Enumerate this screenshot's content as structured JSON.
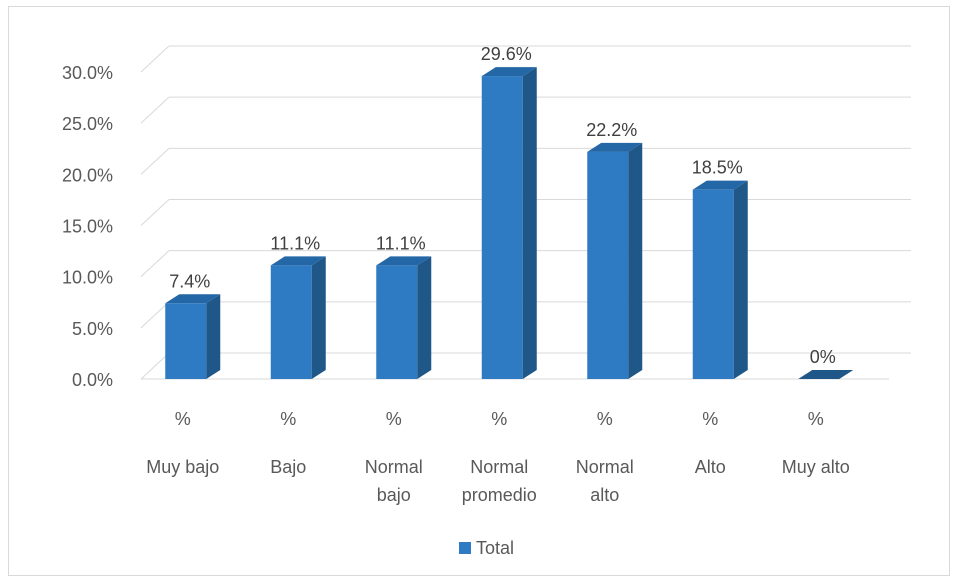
{
  "chart_data": {
    "type": "bar",
    "categories": [
      "Muy bajo",
      "Bajo",
      "Normal bajo",
      "Normal promedio",
      "Normal alto",
      "Alto",
      "Muy alto"
    ],
    "category_lines": [
      [
        "Muy bajo"
      ],
      [
        "Bajo"
      ],
      [
        "Normal",
        "bajo"
      ],
      [
        "Normal",
        "promedio"
      ],
      [
        "Normal",
        "alto"
      ],
      [
        "Alto"
      ],
      [
        "Muy alto"
      ]
    ],
    "category_sublabel": "%",
    "series": [
      {
        "name": "Total",
        "values": [
          7.4,
          11.1,
          11.1,
          29.6,
          22.2,
          18.5,
          0
        ],
        "labels": [
          "7.4%",
          "11.1%",
          "11.1%",
          "29.6%",
          "22.2%",
          "18.5%",
          "0%"
        ],
        "color": "#2e7bc4"
      }
    ],
    "y_ticks": [
      "0.0%",
      "5.0%",
      "10.0%",
      "15.0%",
      "20.0%",
      "25.0%",
      "30.0%"
    ],
    "ylim": [
      0,
      30
    ],
    "grid": true,
    "legend_position": "bottom",
    "three_d": true
  }
}
